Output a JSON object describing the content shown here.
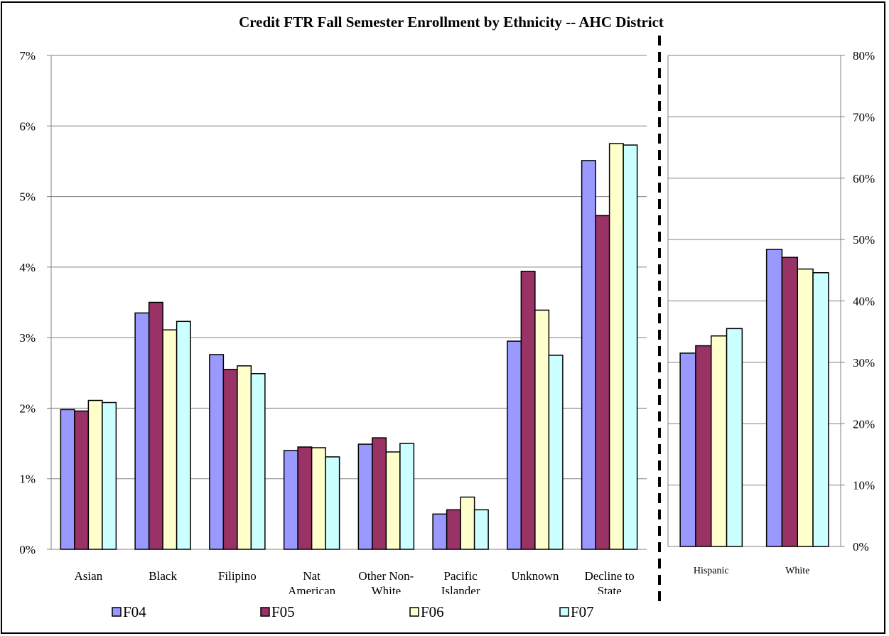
{
  "chart_data": [
    {
      "type": "bar",
      "title": "Credit FTR Fall Semester Enrollment by Ethnicity -- AHC District",
      "categories": [
        "Asian",
        "Black",
        "Filipino",
        "Nat American",
        "Other Non-White",
        "Pacific Islander",
        "Unknown",
        "Decline to State"
      ],
      "category_lines": [
        [
          "Asian"
        ],
        [
          "Black"
        ],
        [
          "Filipino"
        ],
        [
          "Nat",
          "American"
        ],
        [
          "Other Non-",
          "White"
        ],
        [
          "Pacific",
          "Islander"
        ],
        [
          "Unknown"
        ],
        [
          "Decline to",
          "State"
        ]
      ],
      "yticks": [
        "0%",
        "1%",
        "2%",
        "3%",
        "4%",
        "5%",
        "6%",
        "7%"
      ],
      "ylim": [
        0,
        7
      ],
      "series": [
        {
          "name": "F04",
          "values": [
            1.98,
            3.35,
            2.76,
            1.4,
            1.49,
            0.5,
            2.95,
            5.51
          ]
        },
        {
          "name": "F05",
          "values": [
            1.96,
            3.5,
            2.55,
            1.45,
            1.58,
            0.56,
            3.94,
            4.73
          ]
        },
        {
          "name": "F06",
          "values": [
            2.11,
            3.11,
            2.6,
            1.44,
            1.38,
            0.74,
            3.39,
            5.75
          ]
        },
        {
          "name": "F07",
          "values": [
            2.08,
            3.23,
            2.49,
            1.31,
            1.5,
            0.56,
            2.75,
            5.73
          ]
        }
      ],
      "grid": true,
      "legend": "bottom"
    },
    {
      "type": "bar",
      "categories": [
        "Hispanic",
        "White"
      ],
      "yticks": [
        "0%",
        "10%",
        "20%",
        "30%",
        "40%",
        "50%",
        "60%",
        "70%",
        "80%"
      ],
      "ylim": [
        0,
        80
      ],
      "y_axis_side": "right",
      "series": [
        {
          "name": "F04",
          "values": [
            31.5,
            48.4
          ]
        },
        {
          "name": "F05",
          "values": [
            32.7,
            47.1
          ]
        },
        {
          "name": "F06",
          "values": [
            34.3,
            45.2
          ]
        },
        {
          "name": "F07",
          "values": [
            35.5,
            44.6
          ]
        }
      ],
      "grid": true
    }
  ],
  "colors": {
    "F04": "#9999ff",
    "F05": "#993366",
    "F06": "#ffffcc",
    "F07": "#ccffff",
    "grid": "#808080",
    "border": "#000000"
  },
  "legend": {
    "items": [
      {
        "name": "F04",
        "color": "#9999ff"
      },
      {
        "name": "F05",
        "color": "#993366"
      },
      {
        "name": "F06",
        "color": "#ffffcc"
      },
      {
        "name": "F07",
        "color": "#ccffff"
      }
    ]
  }
}
